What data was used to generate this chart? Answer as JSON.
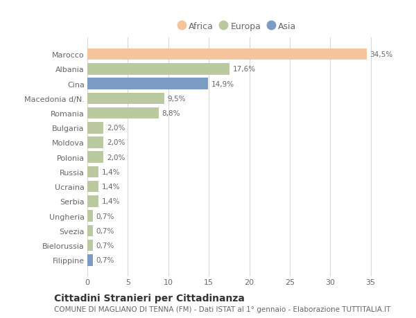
{
  "countries": [
    "Marocco",
    "Albania",
    "Cina",
    "Macedonia d/N.",
    "Romania",
    "Bulgaria",
    "Moldova",
    "Polonia",
    "Russia",
    "Ucraina",
    "Serbia",
    "Ungheria",
    "Svezia",
    "Bielorussia",
    "Filippine"
  ],
  "values": [
    34.5,
    17.6,
    14.9,
    9.5,
    8.8,
    2.0,
    2.0,
    2.0,
    1.4,
    1.4,
    1.4,
    0.7,
    0.7,
    0.7,
    0.7
  ],
  "labels": [
    "34,5%",
    "17,6%",
    "14,9%",
    "9,5%",
    "8,8%",
    "2,0%",
    "2,0%",
    "2,0%",
    "1,4%",
    "1,4%",
    "1,4%",
    "0,7%",
    "0,7%",
    "0,7%",
    "0,7%"
  ],
  "continents": [
    "Africa",
    "Europa",
    "Asia",
    "Europa",
    "Europa",
    "Europa",
    "Europa",
    "Europa",
    "Europa",
    "Europa",
    "Europa",
    "Europa",
    "Europa",
    "Europa",
    "Asia"
  ],
  "colors": {
    "Africa": "#F5C49A",
    "Europa": "#BBC9A0",
    "Asia": "#7A9BC4"
  },
  "xlim": [
    0,
    37
  ],
  "xticks": [
    0,
    5,
    10,
    15,
    20,
    25,
    30,
    35
  ],
  "title": "Cittadini Stranieri per Cittadinanza",
  "subtitle": "COMUNE DI MAGLIANO DI TENNA (FM) - Dati ISTAT al 1° gennaio - Elaborazione TUTTITALIA.IT",
  "background_color": "#ffffff",
  "plot_bg_color": "#ffffff",
  "grid_color": "#d8d8d8",
  "title_fontsize": 10,
  "subtitle_fontsize": 7.5,
  "label_fontsize": 7.5,
  "tick_fontsize": 8,
  "ytick_fontsize": 8,
  "legend_fontsize": 9
}
